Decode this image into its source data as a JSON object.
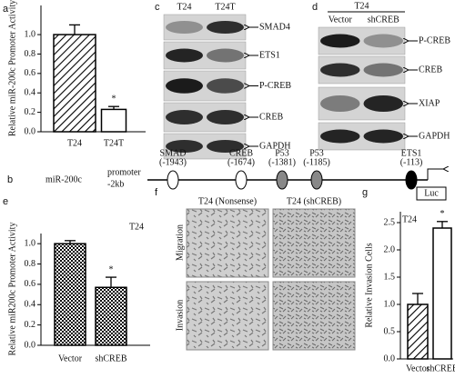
{
  "chart_data": [
    {
      "type": "bar",
      "panel": "a",
      "ylabel": "Relative miR-200c Promoter Activity",
      "categories": [
        "T24",
        "T24T"
      ],
      "values": [
        1.0,
        0.23
      ],
      "errors": [
        0.1,
        0.03
      ],
      "bar_styles": [
        "hatch",
        "open"
      ],
      "annotation": "*",
      "ylim": [
        0,
        1.3
      ],
      "yticks": [
        {
          "value": 0,
          "label": "0.0"
        },
        0.2,
        0.4,
        0.6,
        0.8,
        {
          "value": 1,
          "label": "1.0"
        }
      ]
    },
    {
      "type": "bar",
      "panel": "e",
      "title": "T24",
      "ylabel": "Relative miR200c Promoter Activity",
      "categories": [
        "Vector",
        "shCREB"
      ],
      "values": [
        1.0,
        0.57
      ],
      "errors": [
        0.03,
        0.1
      ],
      "bar_styles": [
        "check",
        "check"
      ],
      "annotation": "*",
      "ylim": [
        0,
        1.1
      ],
      "yticks": [
        {
          "value": 0,
          "label": "0.0"
        },
        0.2,
        0.4,
        0.6,
        0.8,
        {
          "value": 1,
          "label": "1.0"
        }
      ]
    },
    {
      "type": "bar",
      "panel": "g",
      "title": "T24",
      "ylabel": "Relative Invasion Cells",
      "categories": [
        "Vector",
        "shCREB"
      ],
      "values": [
        1.0,
        2.4
      ],
      "errors": [
        0.2,
        0.12
      ],
      "bar_styles": [
        "hatch",
        "open"
      ],
      "annotation": "*",
      "ylim": [
        0,
        2.7
      ],
      "yticks": [
        {
          "value": 0,
          "label": "0.0"
        },
        0.5,
        {
          "value": 1,
          "label": "1.0"
        },
        1.5,
        {
          "value": 2,
          "label": "2.0"
        },
        2.5
      ]
    }
  ],
  "blot_c": {
    "panel": "c",
    "lanes": [
      "T24",
      "T24T"
    ],
    "proteins": [
      "SMAD4",
      "ETS1",
      "P-CREB",
      "CREB",
      "GAPDH"
    ]
  },
  "blot_d": {
    "panel": "d",
    "group": "T24",
    "lanes": [
      "Vector",
      "shCREB"
    ],
    "proteins": [
      "P-CREB",
      "CREB",
      "XIAP",
      "GAPDH"
    ]
  },
  "promoter": {
    "panel": "b",
    "gene": "miR-200c",
    "region": [
      "promoter",
      "-2kb"
    ],
    "sites": [
      {
        "name": "SMAD",
        "position": "(-1943)"
      },
      {
        "name": "CREB",
        "position": "(-1674)"
      },
      {
        "name": "P53",
        "position": "(-1381)"
      },
      {
        "name": "P53",
        "position": "(-1185)"
      },
      {
        "name": "ETS1",
        "position": "(-113)"
      }
    ],
    "reporter": "Luc"
  },
  "micrographs": {
    "panel": "f",
    "columns": [
      "T24 (Nonsense)",
      "T24 (shCREB)"
    ],
    "rows": [
      "Migration",
      "Invasion"
    ]
  }
}
